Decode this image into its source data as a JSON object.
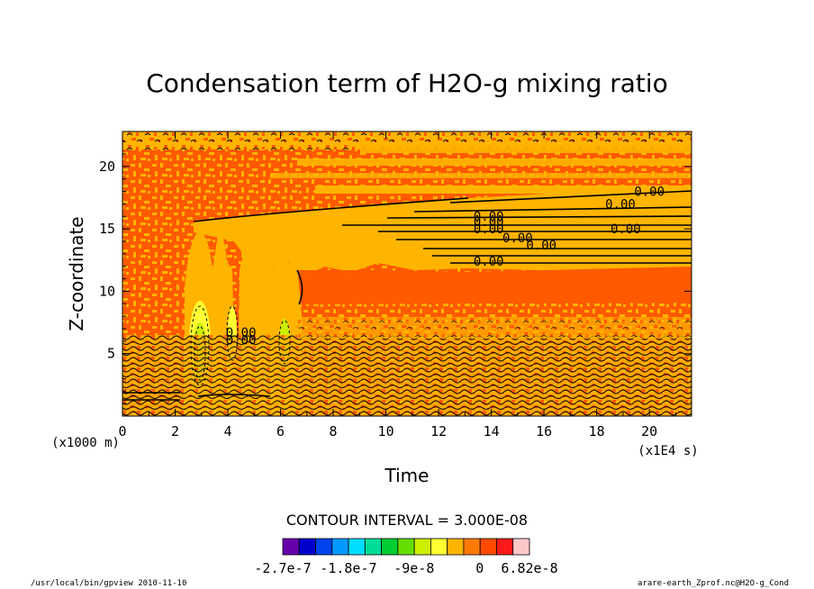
{
  "chart_data": {
    "type": "heatmap",
    "title": "Condensation term of H2O-g mixing ratio",
    "xlabel": "Time",
    "ylabel": "Z-coordinate",
    "x_unit": "(x1E4 s)",
    "y_unit": "(x1000 m)",
    "xlim": [
      0,
      21.6
    ],
    "ylim": [
      0,
      22.8
    ],
    "x_ticks": [
      "0",
      "2",
      "4",
      "6",
      "8",
      "10",
      "12",
      "14",
      "16",
      "18",
      "20"
    ],
    "y_ticks": [
      "5",
      "10",
      "15",
      "20"
    ],
    "contour_interval": "CONTOUR INTERVAL = 3.000E-08",
    "colorbar": {
      "colors": [
        "#6600aa",
        "#0000cc",
        "#0044ee",
        "#0099ff",
        "#00ddff",
        "#00dd99",
        "#00cc33",
        "#66dd00",
        "#ccee00",
        "#ffff33",
        "#ffb400",
        "#ff7a00",
        "#ff4a00",
        "#ff1a1a",
        "#ffc8c8"
      ],
      "labels": [
        "-2.7e-7",
        "-1.8e-7",
        "-9e-8",
        "0",
        "6.82e-8"
      ],
      "range": [
        -2.7e-07,
        6.82e-08
      ]
    },
    "contour_labels": [
      {
        "text": "0.00",
        "x": 20.0,
        "y": 18.0
      },
      {
        "text": "0.00",
        "x": 18.9,
        "y": 17.0
      },
      {
        "text": "0.00",
        "x": 19.1,
        "y": 15.0
      },
      {
        "text": "0.00",
        "x": 13.9,
        "y": 16.0
      },
      {
        "text": "0.00",
        "x": 13.9,
        "y": 15.6
      },
      {
        "text": "0.00",
        "x": 13.9,
        "y": 15.0
      },
      {
        "text": "0.00",
        "x": 15.0,
        "y": 14.3
      },
      {
        "text": "0.00",
        "x": 15.9,
        "y": 13.7
      },
      {
        "text": "0.00",
        "x": 13.9,
        "y": 12.4
      },
      {
        "text": "0.00",
        "x": 4.5,
        "y": 6.7
      },
      {
        "text": "0.00",
        "x": 4.5,
        "y": 6.1
      }
    ]
  },
  "footer": {
    "left": "/usr/local/bin/gpview  2010-11-10",
    "right": "arare-earth_Zprof.nc@H2O-g_Cond"
  }
}
